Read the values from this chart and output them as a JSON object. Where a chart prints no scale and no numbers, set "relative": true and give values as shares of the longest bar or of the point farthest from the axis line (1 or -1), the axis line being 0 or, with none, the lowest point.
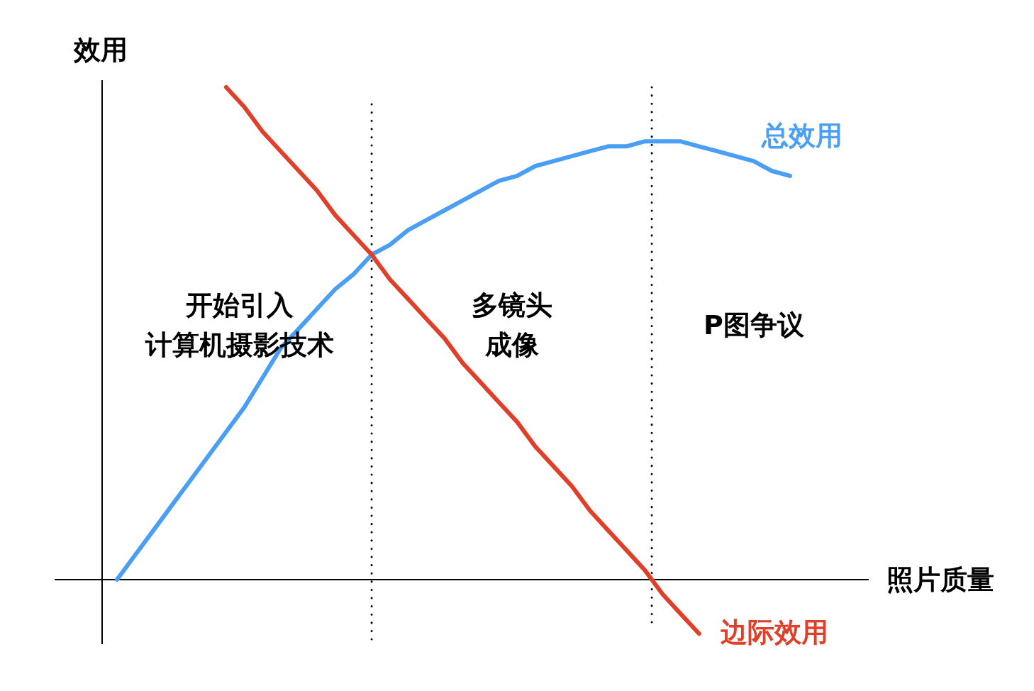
{
  "chart_data": {
    "type": "line",
    "relative": true,
    "xlabel": "照片质量",
    "ylabel": "效用",
    "legend": false,
    "grid": false,
    "marker": "none",
    "line_style": "solid",
    "categories": [
      null,
      null,
      null,
      null,
      null,
      null,
      null,
      null,
      null,
      null,
      null,
      null,
      null,
      null,
      null,
      null,
      null,
      null,
      null,
      null,
      null,
      null,
      null,
      null,
      null,
      null,
      null,
      null,
      null,
      null,
      null,
      null,
      null,
      null,
      null,
      null,
      null,
      null
    ],
    "series": [
      {
        "name": "总效用",
        "color": "#4a9ff5",
        "values": [
          0.0,
          0.05,
          0.1,
          0.15,
          0.2,
          0.25,
          0.3,
          0.35,
          0.41,
          0.47,
          0.51,
          0.55,
          0.59,
          0.62,
          0.66,
          0.68,
          0.71,
          0.73,
          0.75,
          0.77,
          0.79,
          0.81,
          0.82,
          0.84,
          0.85,
          0.86,
          0.87,
          0.88,
          0.88,
          0.89,
          0.89,
          0.89,
          0.88,
          0.87,
          0.86,
          0.85,
          0.83,
          0.82
        ]
      },
      {
        "name": "边际效用",
        "color": "#e0402a",
        "values": [
          null,
          null,
          null,
          null,
          null,
          null,
          1.0,
          0.96,
          0.91,
          0.87,
          0.83,
          0.79,
          0.74,
          0.7,
          0.66,
          0.61,
          0.57,
          0.53,
          0.49,
          0.44,
          0.4,
          0.36,
          0.32,
          0.27,
          0.23,
          0.19,
          0.14,
          0.1,
          0.06,
          0.02,
          -0.03,
          -0.07,
          -0.11,
          null,
          null,
          null,
          null,
          null
        ]
      }
    ],
    "annotations": [
      "开始引入",
      "计算机摄影技术",
      "多镜头",
      "成像",
      "P图争议"
    ]
  }
}
